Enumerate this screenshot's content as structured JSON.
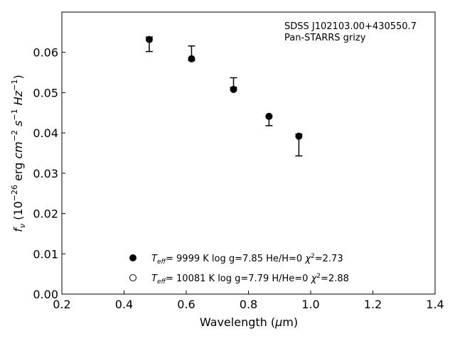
{
  "chart_data": {
    "type": "scatter",
    "xlabel": "Wavelength (μm)",
    "ylabel": "f_ν (10^-26 erg cm^-2 s^-1 Hz^-1)",
    "xlim": [
      0.2,
      1.4
    ],
    "ylim": [
      0.0,
      0.07
    ],
    "xticks": [
      "0.2",
      "0.4",
      "0.6",
      "0.8",
      "1.0",
      "1.2",
      "1.4"
    ],
    "yticks": [
      "0.00",
      "0.01",
      "0.02",
      "0.03",
      "0.04",
      "0.05",
      "0.06"
    ],
    "grid": false,
    "annotation": [
      "SDSS J102103.00+430550.7",
      "Pan-STARRS grizy"
    ],
    "observed": {
      "x": [
        0.481,
        0.617,
        0.752,
        0.866,
        0.962
      ],
      "y": [
        0.062,
        0.0598,
        0.0525,
        0.043,
        0.037
      ],
      "yerr": [
        0.0018,
        0.0018,
        0.0012,
        0.0012,
        0.0027
      ]
    },
    "series": [
      {
        "name": "T_eff= 9999 K log g=7.85 He/H=0 χ²=2.73",
        "marker": "filled-circle",
        "x": [
          0.481,
          0.617,
          0.752,
          0.866,
          0.962
        ],
        "y": [
          0.0632,
          0.0585,
          0.0508,
          0.0442,
          0.0392
        ]
      },
      {
        "name": "T_eff= 10081 K log g=7.79 H/He=0 χ²=2.88",
        "marker": "open-circle",
        "x": [
          0.481,
          0.617,
          0.752,
          0.866,
          0.962
        ],
        "y": [
          0.0632,
          0.0584,
          0.0508,
          0.0441,
          0.0392
        ]
      }
    ],
    "legend": {
      "placement": "lower-center",
      "entries": [
        {
          "teff": "9999 K",
          "rest": "log g=7.85  He/H=0",
          "chi": "=2.73"
        },
        {
          "teff": "10081 K",
          "rest": "log g=7.79  H/He=0",
          "chi": "=2.88"
        }
      ]
    }
  }
}
